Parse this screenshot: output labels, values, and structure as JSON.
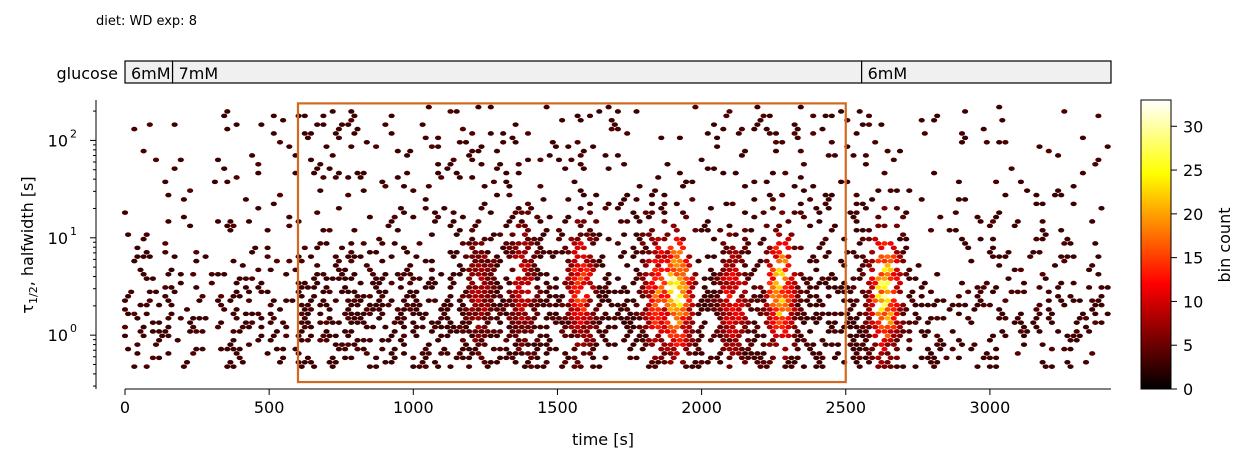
{
  "header": {
    "diet_label": "diet: WD  exp: 8"
  },
  "glucose_bar": {
    "label": "glucose",
    "segments": [
      {
        "label": "6mM",
        "start": 0,
        "end": 165
      },
      {
        "label": "7mM",
        "start": 165,
        "end": 2555
      },
      {
        "label": "6mM",
        "start": 2555,
        "end": 3420
      }
    ]
  },
  "chart_data": {
    "type": "heatmap",
    "subtype": "hexbin",
    "title": "",
    "xlabel": "time [s]",
    "ylabel": "τ1/2, halfwidth [s]",
    "ylabel_main": "τ",
    "ylabel_sub": "1/2",
    "ylabel_rest": ", halfwidth [s]",
    "xlim": [
      0,
      3420
    ],
    "ylim": [
      0.28,
      260
    ],
    "yscale": "log",
    "xticks": [
      0,
      500,
      1000,
      1500,
      2000,
      2500,
      3000
    ],
    "xtick_labels": [
      "0",
      "500",
      "1000",
      "1500",
      "2000",
      "2500",
      "3000"
    ],
    "yticks": [
      1,
      10,
      100
    ],
    "ytick_labels": [
      "10",
      "10",
      "10"
    ],
    "ytick_exponents": [
      "0",
      "1",
      "2"
    ],
    "colormap": "hot",
    "colorbar": {
      "label": "bin count",
      "range": [
        0,
        33
      ],
      "ticks": [
        0,
        5,
        10,
        15,
        20,
        25,
        30
      ],
      "tick_labels": [
        "0",
        "5",
        "10",
        "15",
        "20",
        "25",
        "30"
      ]
    },
    "highlight_box": {
      "x": [
        600,
        2500
      ],
      "y": [
        0.33,
        240
      ],
      "color": "#d2691e"
    },
    "density_clusters": [
      {
        "x": 1230,
        "logy": 0.45,
        "peak": 8
      },
      {
        "x": 1580,
        "logy": 0.5,
        "peak": 15
      },
      {
        "x": 1915,
        "logy": 0.45,
        "peak": 30
      },
      {
        "x": 2275,
        "logy": 0.48,
        "peak": 24
      },
      {
        "x": 2635,
        "logy": 0.45,
        "peak": 28
      },
      {
        "x": 2110,
        "logy": 0.35,
        "peak": 12
      },
      {
        "x": 1380,
        "logy": 0.55,
        "peak": 10
      },
      {
        "x": 1850,
        "logy": 0.45,
        "peak": 18
      }
    ]
  }
}
